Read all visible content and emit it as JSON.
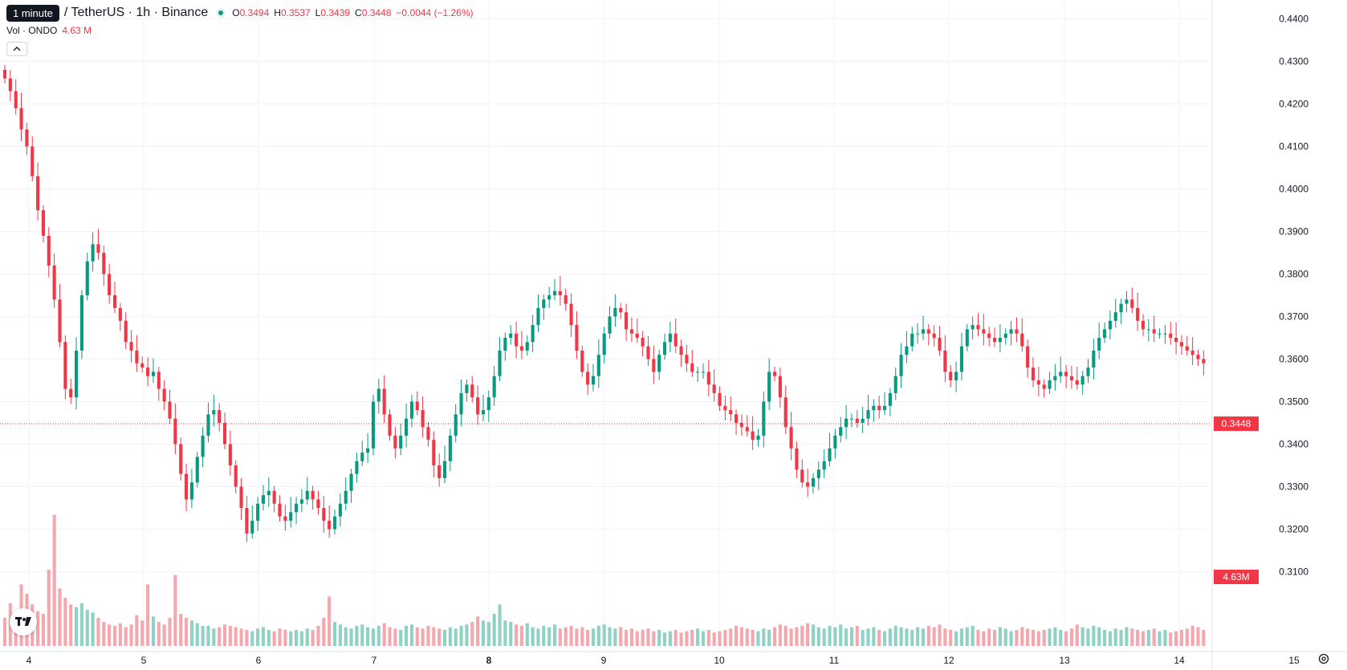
{
  "header": {
    "interval_tooltip": "1 minute",
    "symbol": "/ TetherUS · 1h · Binance",
    "ohlc": [
      {
        "label": "O",
        "value": "0.3494"
      },
      {
        "label": "H",
        "value": "0.3537"
      },
      {
        "label": "L",
        "value": "0.3439"
      },
      {
        "label": "C",
        "value": "0.3448"
      }
    ],
    "change": "−0.0044 (−1.26%)",
    "volume_label": "Vol · ONDO",
    "volume_value": "4.63 M"
  },
  "price_axis": {
    "ticks": [
      "0.4400",
      "0.4300",
      "0.4200",
      "0.4100",
      "0.4000",
      "0.3900",
      "0.3800",
      "0.3700",
      "0.3600",
      "0.3500",
      "0.3400",
      "0.3300",
      "0.3200",
      "0.3100"
    ],
    "last_price_label": "0.3448",
    "last_volume_label": "4.63M"
  },
  "time_axis": {
    "ticks": [
      {
        "label": "4",
        "bold": false
      },
      {
        "label": "5",
        "bold": false
      },
      {
        "label": "6",
        "bold": false
      },
      {
        "label": "7",
        "bold": false
      },
      {
        "label": "8",
        "bold": true
      },
      {
        "label": "9",
        "bold": false
      },
      {
        "label": "10",
        "bold": false
      },
      {
        "label": "11",
        "bold": false
      },
      {
        "label": "12",
        "bold": false
      },
      {
        "label": "13",
        "bold": false
      },
      {
        "label": "14",
        "bold": false
      },
      {
        "label": "15",
        "bold": false
      }
    ]
  },
  "colors": {
    "up": "#089981",
    "down": "#f23645",
    "up_volume": "#8fd1c5",
    "down_volume": "#f5a7ae",
    "grid": "#f0f3fa",
    "axis_text": "#131722"
  },
  "icons": {
    "logo": "tradingview-logo-icon",
    "settings": "gear-icon",
    "collapse": "chevron-up-icon"
  },
  "chart_data": {
    "type": "candlestick",
    "timeframe": "1h",
    "ylim": [
      0.305,
      0.445
    ],
    "x_start": "4",
    "x_end": "14",
    "last_close": 0.3448,
    "close_path": [
      0.426,
      0.423,
      0.419,
      0.414,
      0.41,
      0.403,
      0.395,
      0.389,
      0.382,
      0.374,
      0.364,
      0.353,
      0.351,
      0.362,
      0.375,
      0.383,
      0.387,
      0.385,
      0.38,
      0.375,
      0.372,
      0.369,
      0.364,
      0.362,
      0.359,
      0.358,
      0.356,
      0.357,
      0.353,
      0.35,
      0.346,
      0.34,
      0.333,
      0.327,
      0.331,
      0.337,
      0.342,
      0.347,
      0.348,
      0.345,
      0.34,
      0.335,
      0.33,
      0.325,
      0.319,
      0.322,
      0.326,
      0.328,
      0.329,
      0.326,
      0.323,
      0.322,
      0.324,
      0.326,
      0.327,
      0.329,
      0.327,
      0.325,
      0.322,
      0.32,
      0.323,
      0.326,
      0.329,
      0.333,
      0.336,
      0.338,
      0.339,
      0.35,
      0.353,
      0.347,
      0.342,
      0.339,
      0.342,
      0.346,
      0.35,
      0.348,
      0.344,
      0.341,
      0.335,
      0.332,
      0.336,
      0.342,
      0.347,
      0.352,
      0.354,
      0.351,
      0.347,
      0.348,
      0.351,
      0.356,
      0.362,
      0.365,
      0.366,
      0.363,
      0.362,
      0.364,
      0.368,
      0.372,
      0.374,
      0.375,
      0.376,
      0.375,
      0.373,
      0.368,
      0.362,
      0.357,
      0.354,
      0.356,
      0.361,
      0.366,
      0.37,
      0.372,
      0.371,
      0.367,
      0.366,
      0.365,
      0.363,
      0.36,
      0.357,
      0.361,
      0.364,
      0.366,
      0.363,
      0.361,
      0.359,
      0.357,
      0.357,
      0.357,
      0.354,
      0.352,
      0.349,
      0.348,
      0.347,
      0.345,
      0.344,
      0.343,
      0.341,
      0.342,
      0.35,
      0.357,
      0.356,
      0.351,
      0.344,
      0.339,
      0.334,
      0.331,
      0.33,
      0.332,
      0.334,
      0.336,
      0.339,
      0.342,
      0.344,
      0.346,
      0.346,
      0.345,
      0.346,
      0.348,
      0.349,
      0.348,
      0.349,
      0.352,
      0.356,
      0.361,
      0.363,
      0.366,
      0.366,
      0.367,
      0.366,
      0.365,
      0.362,
      0.357,
      0.355,
      0.357,
      0.363,
      0.367,
      0.368,
      0.367,
      0.366,
      0.365,
      0.364,
      0.365,
      0.366,
      0.367,
      0.366,
      0.363,
      0.358,
      0.355,
      0.354,
      0.353,
      0.355,
      0.356,
      0.357,
      0.356,
      0.355,
      0.354,
      0.356,
      0.358,
      0.362,
      0.365,
      0.367,
      0.369,
      0.371,
      0.373,
      0.374,
      0.372,
      0.369,
      0.367,
      0.367,
      0.366,
      0.366,
      0.366,
      0.365,
      0.364,
      0.363,
      0.362,
      0.361,
      0.36,
      0.359,
      0.359,
      0.36,
      0.359,
      0.358,
      0.356,
      0.354,
      0.351,
      0.348,
      0.3448
    ],
    "volume_range": [
      0,
      12
    ],
    "volume_path": [
      2.1,
      3.2,
      2.4,
      4.6,
      3.9,
      3.1,
      2.6,
      2.4,
      5.7,
      9.8,
      4.3,
      3.6,
      3.1,
      2.9,
      3.2,
      2.7,
      2.5,
      2.1,
      1.8,
      1.6,
      1.5,
      1.7,
      1.4,
      1.6,
      2.3,
      1.9,
      4.6,
      2.2,
      1.8,
      1.6,
      2.1,
      5.3,
      2.4,
      2.1,
      1.9,
      1.7,
      1.5,
      1.5,
      1.3,
      1.4,
      1.6,
      1.5,
      1.4,
      1.3,
      1.2,
      1.1,
      1.3,
      1.4,
      1.2,
      1.1,
      1.3,
      1.2,
      1.1,
      1.2,
      1.1,
      1.3,
      1.2,
      1.5,
      2.1,
      3.7,
      1.8,
      1.6,
      1.4,
      1.3,
      1.5,
      1.6,
      1.4,
      1.3,
      1.5,
      1.7,
      1.4,
      1.3,
      1.2,
      1.5,
      1.6,
      1.4,
      1.3,
      1.5,
      1.4,
      1.3,
      1.2,
      1.4,
      1.3,
      1.5,
      1.6,
      1.8,
      2.2,
      1.9,
      1.8,
      2.4,
      3.1,
      1.9,
      1.8,
      1.6,
      1.5,
      1.7,
      1.4,
      1.3,
      1.5,
      1.4,
      1.6,
      1.3,
      1.4,
      1.5,
      1.3,
      1.4,
      1.2,
      1.3,
      1.5,
      1.6,
      1.4,
      1.3,
      1.4,
      1.2,
      1.3,
      1.1,
      1.2,
      1.3,
      1.1,
      1.2,
      1.0,
      1.1,
      1.2,
      1.0,
      1.1,
      1.2,
      1.3,
      1.1,
      1.2,
      1.0,
      1.1,
      1.2,
      1.3,
      1.5,
      1.4,
      1.3,
      1.2,
      1.1,
      1.3,
      1.2,
      1.4,
      1.6,
      1.5,
      1.3,
      1.4,
      1.5,
      1.7,
      1.6,
      1.4,
      1.3,
      1.5,
      1.4,
      1.6,
      1.3,
      1.4,
      1.5,
      1.2,
      1.3,
      1.4,
      1.2,
      1.1,
      1.3,
      1.5,
      1.4,
      1.3,
      1.2,
      1.4,
      1.3,
      1.5,
      1.4,
      1.6,
      1.3,
      1.2,
      1.1,
      1.3,
      1.4,
      1.5,
      1.2,
      1.1,
      1.3,
      1.2,
      1.4,
      1.3,
      1.1,
      1.2,
      1.4,
      1.3,
      1.2,
      1.1,
      1.2,
      1.3,
      1.4,
      1.2,
      1.1,
      1.3,
      1.6,
      1.4,
      1.3,
      1.5,
      1.4,
      1.2,
      1.1,
      1.3,
      1.2,
      1.4,
      1.3,
      1.2,
      1.1,
      1.2,
      1.3,
      1.1,
      1.2,
      1.0,
      1.1,
      1.2,
      1.3,
      1.5,
      1.4,
      1.2,
      4.63
    ]
  }
}
